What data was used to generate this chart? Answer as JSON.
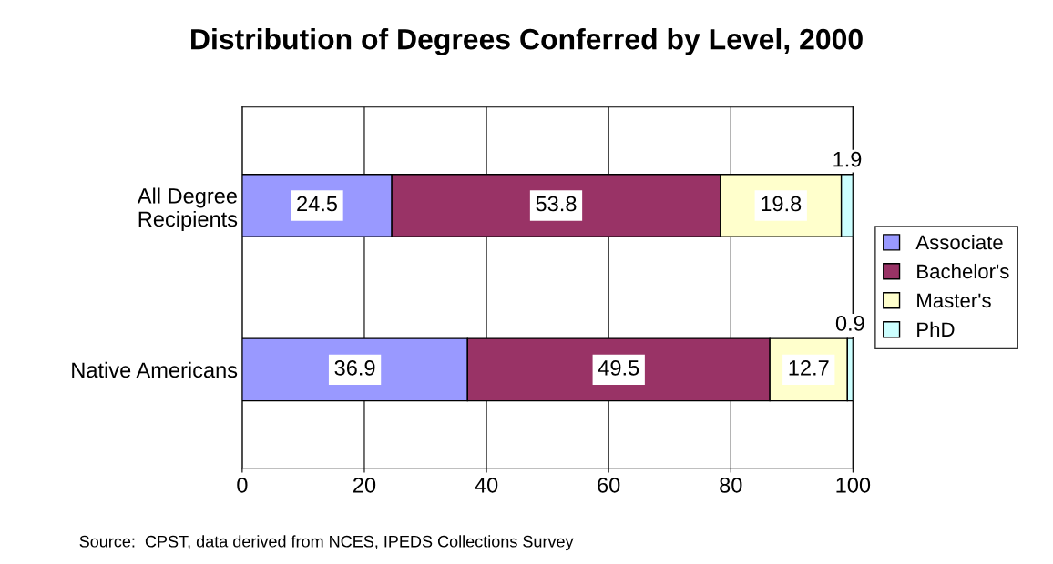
{
  "chart_data": {
    "type": "bar",
    "orientation": "horizontal",
    "stacked": true,
    "title": "Distribution of Degrees Conferred by Level, 2000",
    "categories": [
      "All Degree\nRecipients",
      "Native Americans"
    ],
    "series": [
      {
        "name": "Associate",
        "color": "#9999ff",
        "values": [
          24.5,
          36.9
        ]
      },
      {
        "name": "Bachelor's",
        "color": "#993366",
        "values": [
          53.8,
          49.5
        ]
      },
      {
        "name": "Master's",
        "color": "#ffffcc",
        "values": [
          19.8,
          12.7
        ]
      },
      {
        "name": "PhD",
        "color": "#ccffff",
        "values": [
          1.9,
          0.9
        ]
      }
    ],
    "xlim": [
      0,
      100
    ],
    "xticks": [
      0,
      20,
      40,
      60,
      80,
      100
    ],
    "grid": "x",
    "legend": "right",
    "data_labels": true,
    "annotations": [
      "Source:  CPST, data derived from NCES, IPEDS Collections Survey"
    ]
  }
}
